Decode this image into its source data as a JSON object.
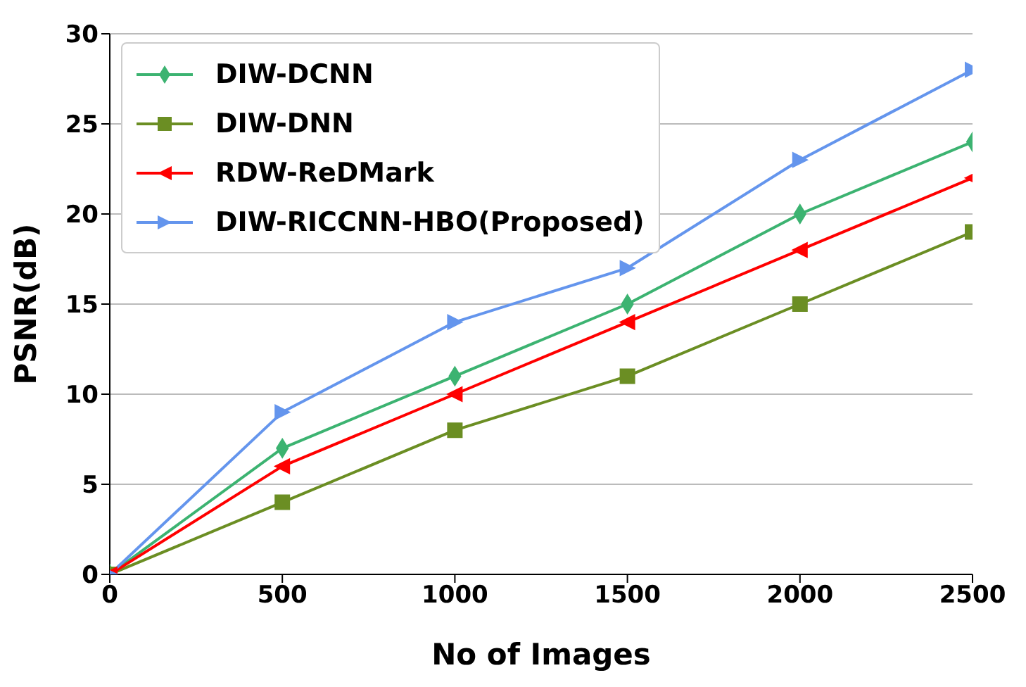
{
  "chart_data": {
    "type": "line",
    "xlabel": "No of Images",
    "ylabel": "PSNR(dB)",
    "x": [
      0,
      500,
      1000,
      1500,
      2000,
      2500
    ],
    "series": [
      {
        "name": "DIW-DCNN",
        "color": "#3cb371",
        "marker": "diamond",
        "values": [
          0,
          7,
          11,
          15,
          20,
          24
        ]
      },
      {
        "name": "DIW-DNN",
        "color": "#6b8e23",
        "marker": "square",
        "values": [
          0,
          4,
          8,
          11,
          15,
          19
        ]
      },
      {
        "name": "RDW-ReDMark",
        "color": "#ff0000",
        "marker": "triangle-left",
        "values": [
          0,
          6,
          10,
          14,
          18,
          22
        ]
      },
      {
        "name": "DIW-RICCNN-HBO(Proposed)",
        "color": "#6495ed",
        "marker": "triangle-right",
        "values": [
          0,
          9,
          14,
          17,
          23,
          28
        ]
      }
    ],
    "xlim": [
      0,
      2500
    ],
    "xticks": [
      0,
      500,
      1000,
      1500,
      2000,
      2500
    ],
    "ylim": [
      0,
      30
    ],
    "yticks": [
      0,
      5,
      10,
      15,
      20,
      25,
      30
    ],
    "grid": "y",
    "legend": "top left"
  }
}
